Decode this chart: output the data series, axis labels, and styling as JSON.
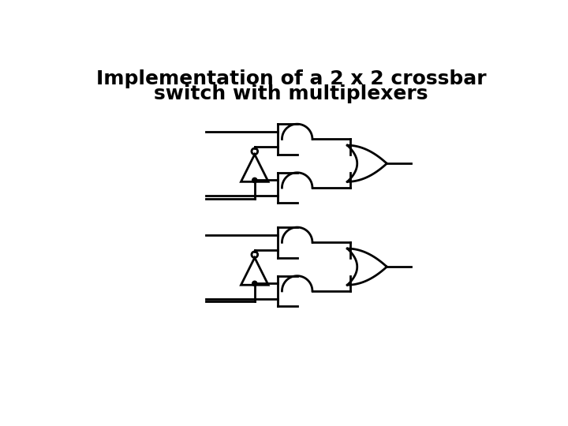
{
  "title_line1": "Implementation of a 2 x 2 crossbar",
  "title_line2": "switch with multiplexers",
  "title_fontsize": 18,
  "bg_color": "#ffffff",
  "line_color": "#000000",
  "lw": 2.0
}
